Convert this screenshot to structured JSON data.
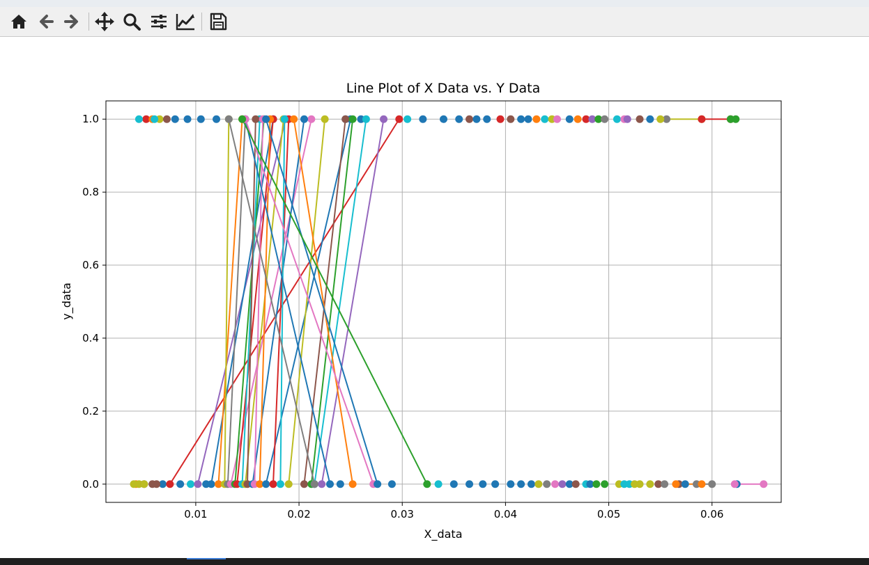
{
  "toolbar": {
    "buttons": [
      {
        "name": "home-button",
        "icon": "home-icon"
      },
      {
        "name": "back-button",
        "icon": "arrow-left-icon"
      },
      {
        "name": "forward-button",
        "icon": "arrow-right-icon"
      },
      {
        "name": "pan-button",
        "icon": "move-icon"
      },
      {
        "name": "zoom-button",
        "icon": "magnifier-icon"
      },
      {
        "name": "configure-subplots-button",
        "icon": "sliders-icon"
      },
      {
        "name": "edit-axis-button",
        "icon": "line-chart-icon"
      },
      {
        "name": "save-button",
        "icon": "floppy-disk-icon"
      }
    ]
  },
  "chart_data": {
    "type": "line",
    "title": "Line Plot of X Data vs. Y Data",
    "xlabel": "X_data",
    "ylabel": "y_data",
    "xlim": [
      0.0013,
      0.0667
    ],
    "ylim": [
      -0.05,
      1.05
    ],
    "xticks": [
      "0.01",
      "0.02",
      "0.03",
      "0.04",
      "0.05",
      "0.06"
    ],
    "xtick_values": [
      0.01,
      0.02,
      0.03,
      0.04,
      0.05,
      0.06
    ],
    "yticks": [
      "0.0",
      "0.2",
      "0.4",
      "0.6",
      "0.8",
      "1.0"
    ],
    "ytick_values": [
      0.0,
      0.2,
      0.4,
      0.6,
      0.8,
      1.0
    ],
    "grid": true,
    "marker": "circle",
    "palette": [
      "#1f77b4",
      "#ff7f0e",
      "#2ca02c",
      "#d62728",
      "#9467bd",
      "#8c564b",
      "#e377c2",
      "#7f7f7f",
      "#bcbd22",
      "#17becf"
    ],
    "series": [
      {
        "x": [
          0.0075,
          0.0297
        ],
        "y": [
          0,
          1
        ],
        "color": "#d62728"
      },
      {
        "x": [
          0.0102,
          0.0187
        ],
        "y": [
          0,
          1
        ],
        "color": "#9467bd"
      },
      {
        "x": [
          0.0115,
          0.0175
        ],
        "y": [
          0,
          1
        ],
        "color": "#1f77b4"
      },
      {
        "x": [
          0.0122,
          0.0145
        ],
        "y": [
          0,
          1
        ],
        "color": "#ff7f0e"
      },
      {
        "x": [
          0.0128,
          0.0132
        ],
        "y": [
          0,
          1
        ],
        "color": "#bcbd22"
      },
      {
        "x": [
          0.0131,
          0.0148
        ],
        "y": [
          0,
          1
        ],
        "color": "#7f7f7f"
      },
      {
        "x": [
          0.0134,
          0.0212
        ],
        "y": [
          0,
          1
        ],
        "color": "#e377c2"
      },
      {
        "x": [
          0.0138,
          0.0166
        ],
        "y": [
          0,
          1
        ],
        "color": "#2ca02c"
      },
      {
        "x": [
          0.014,
          0.0175
        ],
        "y": [
          0,
          1
        ],
        "color": "#d62728"
      },
      {
        "x": [
          0.0145,
          0.0162
        ],
        "y": [
          0,
          1
        ],
        "color": "#17becf"
      },
      {
        "x": [
          0.0148,
          0.0185
        ],
        "y": [
          0,
          1
        ],
        "color": "#bcbd22"
      },
      {
        "x": [
          0.015,
          0.0158
        ],
        "y": [
          0,
          1
        ],
        "color": "#8c564b"
      },
      {
        "x": [
          0.0155,
          0.0205
        ],
        "y": [
          0,
          1
        ],
        "color": "#1f77b4"
      },
      {
        "x": [
          0.0157,
          0.0165
        ],
        "y": [
          0,
          1
        ],
        "color": "#e377c2"
      },
      {
        "x": [
          0.0162,
          0.0172
        ],
        "y": [
          0,
          1
        ],
        "color": "#ff7f0e"
      },
      {
        "x": [
          0.0168,
          0.025
        ],
        "y": [
          0,
          1
        ],
        "color": "#1f77b4"
      },
      {
        "x": [
          0.0175,
          0.019
        ],
        "y": [
          0,
          1
        ],
        "color": "#d62728"
      },
      {
        "x": [
          0.0182,
          0.0186
        ],
        "y": [
          0,
          1
        ],
        "color": "#17becf"
      },
      {
        "x": [
          0.019,
          0.0225
        ],
        "y": [
          0,
          1
        ],
        "color": "#bcbd22"
      },
      {
        "x": [
          0.0205,
          0.0245
        ],
        "y": [
          0,
          1
        ],
        "color": "#8c564b"
      },
      {
        "x": [
          0.0212,
          0.0252
        ],
        "y": [
          0,
          1
        ],
        "color": "#2ca02c"
      },
      {
        "x": [
          0.0215,
          0.0265
        ],
        "y": [
          0,
          1
        ],
        "color": "#17becf"
      },
      {
        "x": [
          0.0222,
          0.0282
        ],
        "y": [
          0,
          1
        ],
        "color": "#9467bd"
      },
      {
        "x": [
          0.023,
          0.0148
        ],
        "y": [
          0,
          1
        ],
        "color": "#1f77b4"
      },
      {
        "x": [
          0.0252,
          0.0195
        ],
        "y": [
          0,
          1
        ],
        "color": "#ff7f0e"
      },
      {
        "x": [
          0.0272,
          0.0148
        ],
        "y": [
          0,
          1
        ],
        "color": "#e377c2"
      },
      {
        "x": [
          0.0276,
          0.0168
        ],
        "y": [
          0,
          1
        ],
        "color": "#1f77b4"
      },
      {
        "x": [
          0.0324,
          0.0145
        ],
        "y": [
          0,
          1
        ],
        "color": "#2ca02c"
      },
      {
        "x": [
          0.0215,
          0.0132
        ],
        "y": [
          0,
          1
        ],
        "color": "#7f7f7f"
      },
      {
        "x": [
          0.0058,
          0.0062
        ],
        "y": [
          0,
          0
        ],
        "color": "#8c564b"
      },
      {
        "x": [
          0.0585,
          0.06
        ],
        "y": [
          0,
          0
        ],
        "color": "#7f7f7f"
      },
      {
        "x": [
          0.0622,
          0.065
        ],
        "y": [
          0,
          0
        ],
        "color": "#e377c2"
      },
      {
        "x": [
          0.0565,
          0.059
        ],
        "y": [
          0,
          0
        ],
        "color": "#ff7f0e"
      },
      {
        "x": [
          0.055,
          0.059
        ],
        "y": [
          1,
          1
        ],
        "color": "#bcbd22"
      },
      {
        "x": [
          0.059,
          0.0618
        ],
        "y": [
          1,
          1
        ],
        "color": "#d62728"
      },
      {
        "x": [
          0.0618,
          0.0623
        ],
        "y": [
          1,
          1
        ],
        "color": "#2ca02c"
      },
      {
        "x": [
          0.0045,
          0.006
        ],
        "y": [
          1,
          1
        ],
        "color": "#17becf"
      },
      {
        "x": [
          0.004,
          0.005
        ],
        "y": [
          0,
          0
        ],
        "color": "#bcbd22"
      }
    ],
    "extra_points_bottom": [
      {
        "x": 0.0042,
        "color": "#ff7f0e"
      },
      {
        "x": 0.0045,
        "color": "#bcbd22"
      },
      {
        "x": 0.005,
        "color": "#8c564b"
      },
      {
        "x": 0.0068,
        "color": "#1f77b4"
      },
      {
        "x": 0.0085,
        "color": "#1f77b4"
      },
      {
        "x": 0.0095,
        "color": "#17becf"
      },
      {
        "x": 0.011,
        "color": "#1f77b4"
      },
      {
        "x": 0.024,
        "color": "#1f77b4"
      },
      {
        "x": 0.029,
        "color": "#1f77b4"
      },
      {
        "x": 0.0335,
        "color": "#17becf"
      },
      {
        "x": 0.035,
        "color": "#1f77b4"
      },
      {
        "x": 0.0365,
        "color": "#1f77b4"
      },
      {
        "x": 0.0378,
        "color": "#1f77b4"
      },
      {
        "x": 0.039,
        "color": "#1f77b4"
      },
      {
        "x": 0.0405,
        "color": "#1f77b4"
      },
      {
        "x": 0.0415,
        "color": "#1f77b4"
      },
      {
        "x": 0.0425,
        "color": "#1f77b4"
      },
      {
        "x": 0.0432,
        "color": "#bcbd22"
      },
      {
        "x": 0.044,
        "color": "#7f7f7f"
      },
      {
        "x": 0.0448,
        "color": "#e377c2"
      },
      {
        "x": 0.0455,
        "color": "#9467bd"
      },
      {
        "x": 0.0462,
        "color": "#1f77b4"
      },
      {
        "x": 0.0468,
        "color": "#8c564b"
      },
      {
        "x": 0.0478,
        "color": "#17becf"
      },
      {
        "x": 0.0482,
        "color": "#1f77b4"
      },
      {
        "x": 0.0488,
        "color": "#2ca02c"
      },
      {
        "x": 0.0496,
        "color": "#2ca02c"
      },
      {
        "x": 0.051,
        "color": "#bcbd22"
      },
      {
        "x": 0.0515,
        "color": "#17becf"
      },
      {
        "x": 0.052,
        "color": "#17becf"
      },
      {
        "x": 0.0525,
        "color": "#bcbd22"
      },
      {
        "x": 0.053,
        "color": "#bcbd22"
      },
      {
        "x": 0.054,
        "color": "#bcbd22"
      },
      {
        "x": 0.0548,
        "color": "#8c564b"
      },
      {
        "x": 0.0554,
        "color": "#7f7f7f"
      },
      {
        "x": 0.0568,
        "color": "#8c564b"
      },
      {
        "x": 0.0574,
        "color": "#1f77b4"
      },
      {
        "x": 0.0624,
        "color": "#1f77b4"
      }
    ],
    "extra_points_top": [
      {
        "x": 0.0052,
        "color": "#d62728"
      },
      {
        "x": 0.0058,
        "color": "#ff7f0e"
      },
      {
        "x": 0.0065,
        "color": "#bcbd22"
      },
      {
        "x": 0.0072,
        "color": "#8c564b"
      },
      {
        "x": 0.008,
        "color": "#1f77b4"
      },
      {
        "x": 0.0092,
        "color": "#1f77b4"
      },
      {
        "x": 0.0105,
        "color": "#1f77b4"
      },
      {
        "x": 0.012,
        "color": "#1f77b4"
      },
      {
        "x": 0.0245,
        "color": "#1f77b4"
      },
      {
        "x": 0.026,
        "color": "#1f77b4"
      },
      {
        "x": 0.0305,
        "color": "#17becf"
      },
      {
        "x": 0.032,
        "color": "#1f77b4"
      },
      {
        "x": 0.034,
        "color": "#1f77b4"
      },
      {
        "x": 0.0355,
        "color": "#1f77b4"
      },
      {
        "x": 0.0365,
        "color": "#8c564b"
      },
      {
        "x": 0.0372,
        "color": "#1f77b4"
      },
      {
        "x": 0.0382,
        "color": "#1f77b4"
      },
      {
        "x": 0.0395,
        "color": "#d62728"
      },
      {
        "x": 0.0405,
        "color": "#8c564b"
      },
      {
        "x": 0.0415,
        "color": "#1f77b4"
      },
      {
        "x": 0.0422,
        "color": "#1f77b4"
      },
      {
        "x": 0.043,
        "color": "#ff7f0e"
      },
      {
        "x": 0.0438,
        "color": "#17becf"
      },
      {
        "x": 0.0445,
        "color": "#bcbd22"
      },
      {
        "x": 0.045,
        "color": "#e377c2"
      },
      {
        "x": 0.0462,
        "color": "#1f77b4"
      },
      {
        "x": 0.047,
        "color": "#ff7f0e"
      },
      {
        "x": 0.0478,
        "color": "#d62728"
      },
      {
        "x": 0.0484,
        "color": "#9467bd"
      },
      {
        "x": 0.049,
        "color": "#2ca02c"
      },
      {
        "x": 0.0496,
        "color": "#7f7f7f"
      },
      {
        "x": 0.0508,
        "color": "#17becf"
      },
      {
        "x": 0.0515,
        "color": "#e377c2"
      },
      {
        "x": 0.0518,
        "color": "#9467bd"
      },
      {
        "x": 0.053,
        "color": "#8c564b"
      },
      {
        "x": 0.054,
        "color": "#1f77b4"
      },
      {
        "x": 0.0556,
        "color": "#7f7f7f"
      }
    ]
  }
}
